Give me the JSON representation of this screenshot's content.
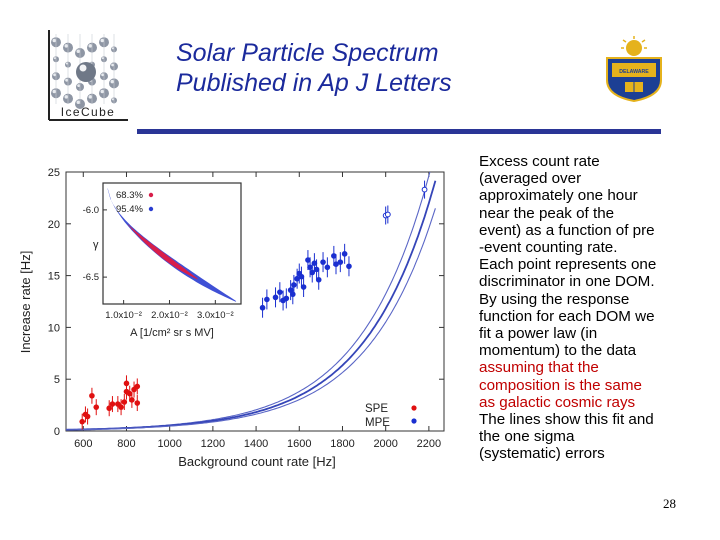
{
  "slide": {
    "title_lines": [
      "Solar Particle Spectrum",
      "Published in Ap J Letters"
    ],
    "page_number": "28",
    "title_color": "#1b2a9c",
    "rule_color": "#2a3596"
  },
  "logos": {
    "left": {
      "icon": "icecube-logo-icon",
      "text": "IceCube"
    },
    "right": {
      "icon": "university-of-delaware-logo-icon",
      "text": "UNIVERSITY OF DELAWARE"
    }
  },
  "notes": {
    "lines": [
      {
        "text": "Excess count rate",
        "highlight": false
      },
      {
        "text": "(averaged over",
        "highlight": false
      },
      {
        "text": "approximately one hour",
        "highlight": false
      },
      {
        "text": "near the peak of the",
        "highlight": false
      },
      {
        "text": "event) as a function of pre",
        "highlight": false
      },
      {
        "text": "-event counting rate.",
        "highlight": false
      },
      {
        "text": "Each point represents one",
        "highlight": false
      },
      {
        "text": "discriminator in one DOM.",
        "highlight": false
      },
      {
        "text": "By using the response",
        "highlight": false
      },
      {
        "text": "function for each DOM we",
        "highlight": false
      },
      {
        "text": "fit a power law (in",
        "highlight": false
      },
      {
        "text": "momentum) to the data",
        "highlight": false
      },
      {
        "text": "assuming that the",
        "highlight": true
      },
      {
        "text": "composition is the same",
        "highlight": true
      },
      {
        "text": "as galactic cosmic rays",
        "highlight": true
      },
      {
        "text": "The lines show this fit and",
        "highlight": false
      },
      {
        "text": "the one sigma",
        "highlight": false
      },
      {
        "text": "(systematic) errors",
        "highlight": false
      }
    ],
    "highlight_color": "#c00000"
  },
  "chart_data": [
    {
      "type": "scatter",
      "xlabel": "Background count rate [Hz]",
      "ylabel": "Increase rate [Hz]",
      "xlim": [
        520,
        2270
      ],
      "ylim": [
        0,
        25
      ],
      "xticks": [
        600,
        800,
        1000,
        1200,
        1400,
        1600,
        1800,
        2000,
        2200
      ],
      "yticks": [
        0,
        5,
        10,
        15,
        20,
        25
      ],
      "grid": false,
      "legend_position": "bottom-right",
      "colors": {
        "SPE": "#e01010",
        "MPE": "#1a2fd0",
        "fit": "#4a5ac8"
      },
      "series": [
        {
          "name": "SPE",
          "marker": "filled-circle",
          "points": [
            [
              595,
              0.9
            ],
            [
              610,
              1.6
            ],
            [
              620,
              1.4
            ],
            [
              640,
              3.4
            ],
            [
              660,
              2.3
            ],
            [
              720,
              2.2
            ],
            [
              735,
              2.6
            ],
            [
              760,
              2.6
            ],
            [
              775,
              2.3
            ],
            [
              790,
              2.8
            ],
            [
              800,
              3.8
            ],
            [
              800,
              4.6
            ],
            [
              815,
              3.6
            ],
            [
              825,
              3.0
            ],
            [
              835,
              4.0
            ],
            [
              850,
              2.7
            ],
            [
              850,
              4.3
            ]
          ]
        },
        {
          "name": "MPE",
          "marker": "filled-circle",
          "points": [
            [
              1430,
              11.9
            ],
            [
              1450,
              12.7
            ],
            [
              1490,
              12.9
            ],
            [
              1510,
              13.4
            ],
            [
              1525,
              12.6
            ],
            [
              1540,
              12.8
            ],
            [
              1560,
              13.6
            ],
            [
              1570,
              13.2
            ],
            [
              1575,
              14.1
            ],
            [
              1590,
              14.7
            ],
            [
              1600,
              15.2
            ],
            [
              1610,
              14.9
            ],
            [
              1620,
              13.9
            ],
            [
              1640,
              16.5
            ],
            [
              1650,
              15.8
            ],
            [
              1660,
              15.3
            ],
            [
              1670,
              16.2
            ],
            [
              1680,
              15.6
            ],
            [
              1690,
              14.6
            ],
            [
              1710,
              16.3
            ],
            [
              1730,
              15.8
            ],
            [
              1760,
              16.9
            ],
            [
              1770,
              16.1
            ],
            [
              1790,
              16.3
            ],
            [
              1810,
              17.1
            ],
            [
              1830,
              15.9
            ]
          ]
        },
        {
          "name": "MPE (open)",
          "marker": "open-circle",
          "points": [
            [
              2000,
              20.8
            ],
            [
              2010,
              20.9
            ],
            [
              2180,
              23.3
            ]
          ]
        }
      ],
      "fit": {
        "name": "power-law fit",
        "band": "one sigma (systematic)"
      },
      "legend": [
        {
          "label": "SPE",
          "color": "#e01010"
        },
        {
          "label": "MPE",
          "color": "#1a2fd0"
        }
      ]
    },
    {
      "type": "scatter",
      "inset": true,
      "xlabel": "A [1/cm² sr s MV]",
      "ylabel": "γ",
      "xticks": [
        "1.0x10⁻²",
        "2.0x10⁻²",
        "3.0x10⁻²"
      ],
      "xtick_values": [
        0.01,
        0.02,
        0.03
      ],
      "yticks": [
        "-6.5",
        "-6.0"
      ],
      "ytick_values": [
        -6.5,
        -6.0
      ],
      "xlim": [
        0.0055,
        0.0356
      ],
      "ylim": [
        -5.8,
        -6.7
      ],
      "legend": [
        {
          "label": "68.3%",
          "color": "#d81e4a"
        },
        {
          "label": "95.4%",
          "color": "#2a3dd0"
        }
      ],
      "contour": {
        "description": "elongated banana-shaped region",
        "inner_68": {
          "x": [
            0.011,
            0.029
          ],
          "y": [
            -5.95,
            -6.55
          ]
        },
        "outer_95": {
          "x": [
            0.0065,
            0.0345
          ],
          "y": [
            -5.83,
            -6.67
          ]
        }
      }
    }
  ]
}
